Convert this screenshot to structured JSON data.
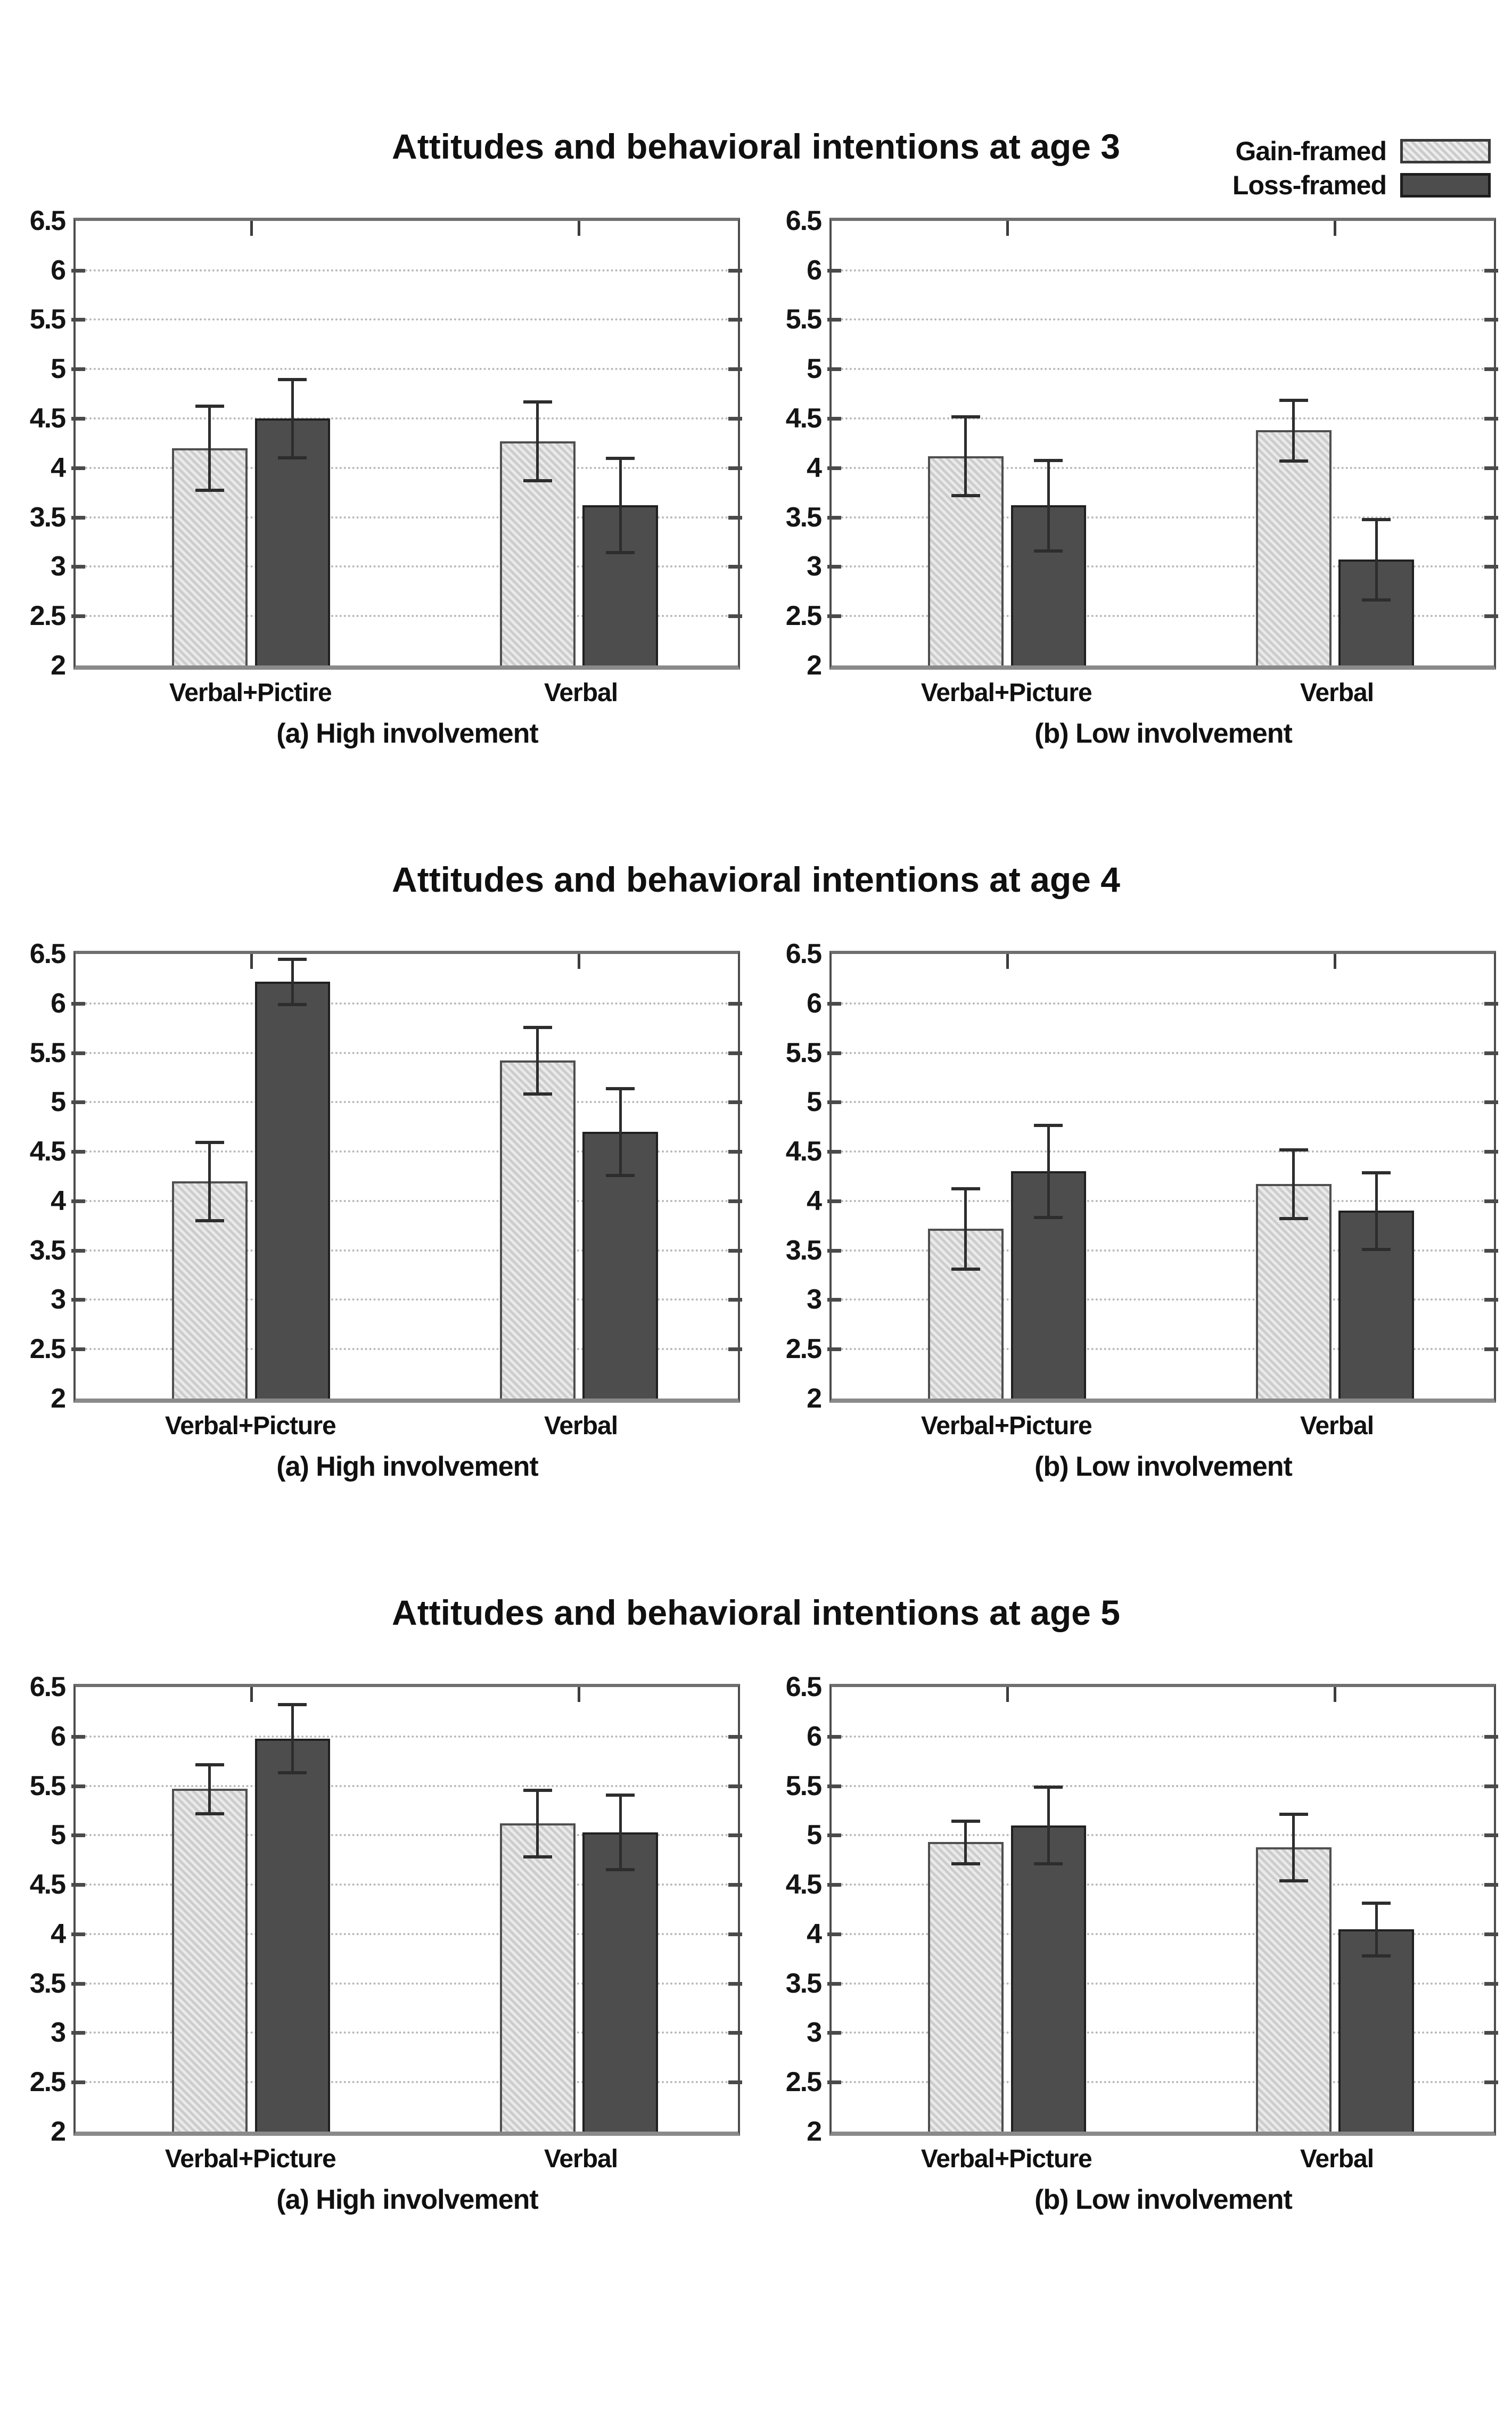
{
  "legend": {
    "items": [
      {
        "label": "Gain-framed",
        "color": "#d8d8d8"
      },
      {
        "label": "Loss-framed",
        "color": "#4d4d4d"
      }
    ]
  },
  "axis": {
    "ylim": [
      2,
      6.5
    ],
    "ytick_step": 0.5,
    "yticks": [
      "6.5",
      "6",
      "5.5",
      "5",
      "4.5",
      "4",
      "3.5",
      "3",
      "2.5",
      "2"
    ],
    "grid": "dotted horizontal"
  },
  "colors": {
    "gain": "#d8d8d8",
    "loss": "#4d4d4d",
    "grid": "#b9b9b9",
    "frame": "#4d4d4d",
    "error": "#2d2d2d"
  },
  "chart_data": [
    {
      "type": "bar",
      "title": "Attitudes and behavioral intentions at age 3",
      "panels": [
        {
          "caption": "(a) High involvement",
          "categories": [
            "Verbal+Pictire",
            "Verbal"
          ],
          "series": [
            {
              "name": "Gain-framed",
              "values": [
                4.2,
                4.27
              ],
              "errors": [
                0.43,
                0.4
              ]
            },
            {
              "name": "Loss-framed",
              "values": [
                4.5,
                3.62
              ],
              "errors": [
                0.4,
                0.48
              ]
            }
          ],
          "ylim": [
            2,
            6.5
          ]
        },
        {
          "caption": "(b) Low involvement",
          "categories": [
            "Verbal+Picture",
            "Verbal"
          ],
          "series": [
            {
              "name": "Gain-framed",
              "values": [
                4.12,
                4.38
              ],
              "errors": [
                0.4,
                0.31
              ]
            },
            {
              "name": "Loss-framed",
              "values": [
                3.62,
                3.07
              ],
              "errors": [
                0.46,
                0.41
              ]
            }
          ],
          "ylim": [
            2,
            6.5
          ]
        }
      ]
    },
    {
      "type": "bar",
      "title": "Attitudes and behavioral intentions at age 4",
      "panels": [
        {
          "caption": "(a) High involvement",
          "categories": [
            "Verbal+Picture",
            "Verbal"
          ],
          "series": [
            {
              "name": "Gain-framed",
              "values": [
                4.2,
                5.42
              ],
              "errors": [
                0.4,
                0.34
              ]
            },
            {
              "name": "Loss-framed",
              "values": [
                6.22,
                4.7
              ],
              "errors": [
                0.23,
                0.44
              ]
            }
          ],
          "ylim": [
            2,
            6.5
          ]
        },
        {
          "caption": "(b) Low involvement",
          "categories": [
            "Verbal+Picture",
            "Verbal"
          ],
          "series": [
            {
              "name": "Gain-framed",
              "values": [
                3.72,
                4.17
              ],
              "errors": [
                0.41,
                0.35
              ]
            },
            {
              "name": "Loss-framed",
              "values": [
                4.3,
                3.9
              ],
              "errors": [
                0.47,
                0.39
              ]
            }
          ],
          "ylim": [
            2,
            6.5
          ]
        }
      ]
    },
    {
      "type": "bar",
      "title": "Attitudes and behavioral intentions at age 5",
      "panels": [
        {
          "caption": "(a) High involvement",
          "categories": [
            "Verbal+Picture",
            "Verbal"
          ],
          "series": [
            {
              "name": "Gain-framed",
              "values": [
                5.47,
                5.12
              ],
              "errors": [
                0.25,
                0.34
              ]
            },
            {
              "name": "Loss-framed",
              "values": [
                5.98,
                5.03
              ],
              "errors": [
                0.35,
                0.38
              ]
            }
          ],
          "ylim": [
            2,
            6.5
          ]
        },
        {
          "caption": "(b) Low involvement",
          "categories": [
            "Verbal+Picture",
            "Verbal"
          ],
          "series": [
            {
              "name": "Gain-framed",
              "values": [
                4.93,
                4.88
              ],
              "errors": [
                0.22,
                0.34
              ]
            },
            {
              "name": "Loss-framed",
              "values": [
                5.1,
                4.05
              ],
              "errors": [
                0.39,
                0.27
              ]
            }
          ],
          "ylim": [
            2,
            6.5
          ]
        }
      ]
    }
  ]
}
